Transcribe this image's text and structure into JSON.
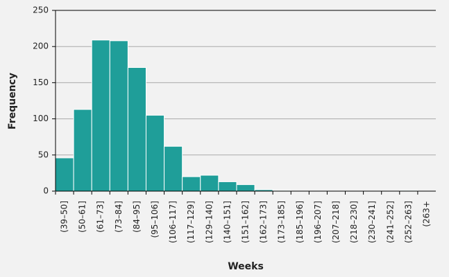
{
  "chart_data": {
    "type": "bar",
    "x_label": "Weeks",
    "y_label": "Frequency",
    "categories": [
      "(39–50]",
      "(50–61]",
      "(61–73]",
      "(73–84]",
      "(84–95]",
      "(95–106]",
      "(106–117]",
      "(117–129]",
      "(129–140]",
      "(140–151]",
      "(151–162]",
      "(162–173]",
      "(173–185]",
      "(185–196]",
      "(196–207]",
      "(207–218]",
      "(218–230]",
      "(230–241]",
      "(241–252]",
      "(252–263]",
      "(263+"
    ],
    "values": [
      46,
      113,
      209,
      208,
      171,
      105,
      62,
      20,
      22,
      13,
      9,
      2,
      1,
      0,
      0,
      0,
      0,
      0,
      0,
      1,
      0
    ],
    "color": "#1f9e99",
    "ylim": [
      0,
      250
    ],
    "yticks": [
      0,
      50,
      100,
      150,
      200,
      250
    ],
    "grid": true
  }
}
